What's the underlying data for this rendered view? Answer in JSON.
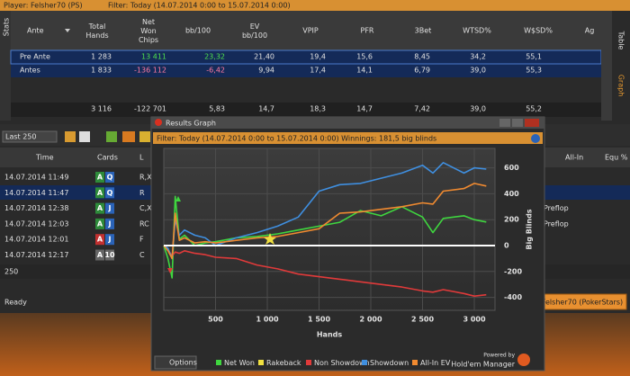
{
  "title_bar": {
    "player": "Player: Felsher70 (PS)",
    "filter": "Filter: Today (14.07.2014 0:00 to 15.07.2014 0:00)"
  },
  "side_tabs": {
    "left": "Stats",
    "right": [
      "Table",
      "Graph"
    ]
  },
  "stats_table": {
    "columns": [
      "Ante",
      "Total Hands",
      "Net Won Chips",
      "bb/100",
      "EV bb/100",
      "VPIP",
      "PFR",
      "3Bet",
      "WTSD%",
      "W$SD%",
      "Ag"
    ],
    "rows": [
      [
        "Pre Ante",
        "1 283",
        "13 411",
        "23,32",
        "21,40",
        "19,4",
        "15,6",
        "8,45",
        "34,2",
        "55,1"
      ],
      [
        "Antes",
        "1 833",
        "-136 112",
        "-6,42",
        "9,94",
        "17,4",
        "14,1",
        "6,79",
        "39,0",
        "55,3"
      ]
    ],
    "totals": [
      "3 116",
      "-122 701",
      "5,83",
      "14,7",
      "18,3",
      "14,7",
      "7,42",
      "39,0",
      "55,2"
    ]
  },
  "toolbar": {
    "range": "Last 250"
  },
  "hands_table": {
    "columns": [
      "Time",
      "Cards",
      "L"
    ],
    "right_columns": [
      "All-In",
      "Equ %"
    ],
    "rows": [
      {
        "time": "14.07.2014 11:49",
        "cards": [
          "A",
          "Q"
        ],
        "colors": [
          "#2e8b3a",
          "#2a63b8"
        ],
        "line": "R,X"
      },
      {
        "time": "14.07.2014 11:47",
        "cards": [
          "A",
          "Q"
        ],
        "colors": [
          "#2e8b3a",
          "#2a63b8"
        ],
        "line": "R"
      },
      {
        "time": "14.07.2014 12:38",
        "cards": [
          "A",
          "J"
        ],
        "colors": [
          "#2e8b3a",
          "#2a63b8"
        ],
        "line": "C,X",
        "street": "Preflop"
      },
      {
        "time": "14.07.2014 12:03",
        "cards": [
          "A",
          "J"
        ],
        "colors": [
          "#2e8b3a",
          "#2a63b8"
        ],
        "line": "RC",
        "street": "Preflop"
      },
      {
        "time": "14.07.2014 12:01",
        "cards": [
          "A",
          "J"
        ],
        "colors": [
          "#c23030",
          "#2a63b8"
        ],
        "line": "F"
      },
      {
        "time": "14.07.2014 12:17",
        "cards": [
          "A",
          "10"
        ],
        "colors": [
          "#666666",
          "#666666"
        ],
        "line": "C"
      }
    ],
    "count": "250"
  },
  "status": "Ready",
  "player_button": "Felsher70 (PokerStars)",
  "graph_window": {
    "title": "Results Graph",
    "filter": "Filter: Today (14.07.2014 0:00 to 15.07.2014 0:00)  Winnings: 181,5 big blinds",
    "options": "Options",
    "powered_by": "Powered by",
    "brand": "Hold'em Manager"
  },
  "chart_data": {
    "type": "line",
    "x_label": "Hands",
    "y_label": "Big Blinds",
    "x": [
      0,
      40,
      80,
      110,
      150,
      200,
      300,
      400,
      500,
      700,
      900,
      1100,
      1300,
      1500,
      1700,
      1900,
      2100,
      2300,
      2500,
      2600,
      2700,
      2900,
      3000,
      3116
    ],
    "series": [
      {
        "name": "Net Won",
        "color": "#3fd63f",
        "values": [
          0,
          -100,
          -250,
          380,
          50,
          80,
          0,
          20,
          30,
          60,
          70,
          90,
          120,
          150,
          180,
          270,
          230,
          300,
          220,
          100,
          210,
          230,
          200,
          182
        ]
      },
      {
        "name": "Rakeback",
        "color": "#f0e040",
        "values": [
          0,
          0,
          0,
          0,
          0,
          0,
          0,
          0,
          0,
          0,
          0,
          0,
          0,
          0,
          0,
          0,
          0,
          0,
          0,
          0,
          0,
          0,
          0,
          0
        ]
      },
      {
        "name": "Non Showdown",
        "color": "#e03a3a",
        "values": [
          0,
          -30,
          -80,
          -50,
          -60,
          -40,
          -60,
          -70,
          -90,
          -100,
          -150,
          -180,
          -220,
          -240,
          -260,
          -280,
          -300,
          -320,
          -350,
          -360,
          -340,
          -370,
          -390,
          -380
        ]
      },
      {
        "name": "Showdown",
        "color": "#3f8fe0",
        "values": [
          0,
          -20,
          -100,
          200,
          80,
          120,
          80,
          60,
          0,
          60,
          100,
          150,
          220,
          420,
          470,
          480,
          520,
          560,
          620,
          560,
          640,
          560,
          600,
          590
        ]
      },
      {
        "name": "All-In EV",
        "color": "#f08a30",
        "values": [
          0,
          -40,
          -100,
          250,
          40,
          60,
          20,
          30,
          20,
          40,
          60,
          70,
          100,
          130,
          250,
          260,
          280,
          300,
          330,
          320,
          420,
          440,
          480,
          460
        ]
      }
    ],
    "xlim": [
      0,
      3200
    ],
    "xticks": [
      500,
      {
        "value": 1000,
        "label": "1 000"
      },
      {
        "value": 1500,
        "label": "1 500"
      },
      {
        "value": 2000,
        "label": "2 000"
      },
      {
        "value": 2500,
        "label": "2 500"
      },
      {
        "value": 3000,
        "label": "3 000"
      }
    ],
    "ylim": [
      -500,
      750
    ],
    "yticks": [
      -400,
      -200,
      0,
      200,
      400,
      600
    ],
    "grid": true
  }
}
